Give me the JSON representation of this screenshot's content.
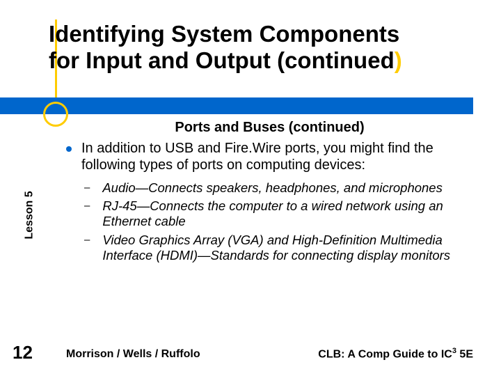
{
  "title": {
    "line1_normal": "Identifying",
    "line1_bold": " System Components",
    "line2_normal": "for Input and Output (continued",
    "line2_accent": ")"
  },
  "colors": {
    "accent": "#ffcc00",
    "bar": "#0066cc",
    "text": "#000000",
    "background": "#ffffff"
  },
  "subtitle": "Ports and Buses (continued)",
  "main_bullet": "In addition to USB and Fire.Wire ports, you might find the following types of ports on computing devices:",
  "sub_bullets": [
    "Audio—Connects speakers, headphones, and microphones",
    "RJ-45—Connects the computer to a wired network using an Ethernet cable",
    "Video Graphics Array (VGA) and High-Definition Multimedia Interface (HDMI)—Standards for connecting display monitors"
  ],
  "sidebar": "Lesson 5",
  "page_number": "12",
  "footer": {
    "left": "Morrison / Wells / Ruffolo",
    "right_prefix": "CLB: A Comp Guide to IC",
    "right_sup": "3",
    "right_suffix": " 5E"
  }
}
